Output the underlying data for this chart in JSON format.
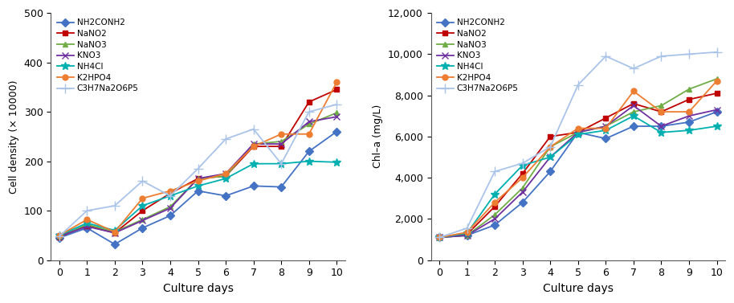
{
  "days": [
    0,
    1,
    2,
    3,
    4,
    5,
    6,
    7,
    8,
    9,
    10
  ],
  "cell_density": {
    "NH2CONH2": [
      45,
      65,
      32,
      65,
      90,
      140,
      130,
      150,
      148,
      220,
      260
    ],
    "NaNO2": [
      47,
      70,
      55,
      100,
      135,
      165,
      170,
      230,
      230,
      320,
      345
    ],
    "NaNO3": [
      48,
      72,
      57,
      82,
      108,
      165,
      170,
      235,
      240,
      275,
      298
    ],
    "KNO3": [
      48,
      68,
      55,
      80,
      105,
      165,
      175,
      235,
      235,
      280,
      290
    ],
    "NH4Cl": [
      50,
      75,
      60,
      110,
      130,
      150,
      165,
      195,
      195,
      200,
      198
    ],
    "K2HPO4": [
      50,
      82,
      57,
      125,
      140,
      160,
      175,
      230,
      255,
      255,
      360
    ],
    "C3H7Na2O6P5": [
      48,
      100,
      110,
      160,
      130,
      185,
      245,
      265,
      195,
      300,
      315
    ]
  },
  "chl_a": {
    "NH2CONH2": [
      1100,
      1200,
      1700,
      2800,
      4300,
      6200,
      5900,
      6500,
      6500,
      6700,
      7200
    ],
    "NaNO2": [
      1100,
      1250,
      2600,
      4200,
      6000,
      6200,
      6900,
      7600,
      7200,
      7800,
      8100
    ],
    "NaNO3": [
      1100,
      1200,
      2200,
      3500,
      5500,
      6200,
      6500,
      7200,
      7500,
      8300,
      8800
    ],
    "KNO3": [
      1100,
      1200,
      2000,
      3300,
      5000,
      6200,
      6500,
      7500,
      6500,
      7000,
      7300
    ],
    "NH4Cl": [
      1100,
      1300,
      3200,
      4600,
      5000,
      6100,
      6300,
      7000,
      6200,
      6300,
      6500
    ],
    "K2HPO4": [
      1100,
      1350,
      2800,
      4000,
      5500,
      6400,
      6400,
      8200,
      7200,
      7200,
      8700
    ],
    "C3H7Na2O6P5": [
      1100,
      1550,
      4300,
      4700,
      5500,
      8500,
      9900,
      9300,
      9900,
      10000,
      10100
    ]
  },
  "series_styles": {
    "NH2CONH2": {
      "color": "#4472c4",
      "marker": "D",
      "linestyle": "-",
      "ms": 5
    },
    "NaNO2": {
      "color": "#c00000",
      "marker": "s",
      "linestyle": "-",
      "ms": 5
    },
    "NaNO3": {
      "color": "#70ad47",
      "marker": "^",
      "linestyle": "-",
      "ms": 5
    },
    "KNO3": {
      "color": "#7030a0",
      "marker": "x",
      "linestyle": "-",
      "ms": 6
    },
    "NH4Cl": {
      "color": "#00b0b0",
      "marker": "*",
      "linestyle": "-",
      "ms": 7
    },
    "K2HPO4": {
      "color": "#ed7d31",
      "marker": "o",
      "linestyle": "-",
      "ms": 5
    },
    "C3H7Na2O6P5": {
      "color": "#a9c4e8",
      "marker": "+",
      "linestyle": "-",
      "ms": 8
    }
  },
  "left_ylabel": "Cell density (× 10000)",
  "right_ylabel": "Chl–a (mg/L)",
  "xlabel": "Culture days",
  "left_ylim": [
    0,
    500
  ],
  "left_yticks": [
    0,
    100,
    200,
    300,
    400,
    500
  ],
  "right_ylim": [
    0,
    12000
  ],
  "right_yticks": [
    0,
    2000,
    4000,
    6000,
    8000,
    10000,
    12000
  ]
}
